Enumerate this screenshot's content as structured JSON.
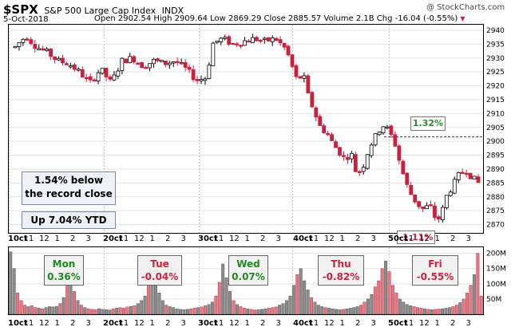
{
  "header": {
    "symbol": "$SPX",
    "name": "S&P 500 Large Cap Index",
    "exchange": "INDX",
    "date": "5-Oct-2018",
    "ohlc_text": "Open 2902.54  High 2909.64  Low 2869.29  Close 2885.57  Volume 2.1B  Chg -16.04 (-0.55%)",
    "down_marker": "▼",
    "credit": "@ StockCharts.com"
  },
  "annotations": {
    "record_line1": "1.54% below",
    "record_line2": "the record close",
    "ytd": "Up 7.04% YTD",
    "gain_tag": "1.32%",
    "loss_tag": "-1.11%"
  },
  "days": [
    {
      "day": "Mon",
      "change": "0.36%",
      "color": "#1e8a1e"
    },
    {
      "day": "Tue",
      "change": "-0.04%",
      "color": "#d0213a"
    },
    {
      "day": "Wed",
      "change": "0.07%",
      "color": "#1e8a1e"
    },
    {
      "day": "Thu",
      "change": "-0.82%",
      "color": "#d0213a"
    },
    {
      "day": "Fri",
      "change": "-0.55%",
      "color": "#d0213a"
    }
  ],
  "chart_data": {
    "type": "candlestick",
    "price_axis": {
      "ticks": [
        "2940",
        "2935",
        "2930",
        "2925",
        "2920",
        "2915",
        "2910",
        "2905",
        "2900",
        "2895",
        "2890",
        "2885",
        "2880",
        "2875",
        "2870"
      ],
      "ylim": [
        2867,
        2942
      ]
    },
    "volume_axis": {
      "ticks": [
        "200M",
        "150M",
        "100M",
        "50M"
      ],
      "ylim": [
        0,
        220
      ]
    },
    "x_ticks": [
      "10ct",
      "11",
      "12",
      "1",
      "2",
      "3",
      "20ct",
      "11",
      "12",
      "1",
      "2",
      "3",
      "30ct",
      "11",
      "12",
      "1",
      "2",
      "3",
      "40ct",
      "11",
      "12",
      "1",
      "2",
      "3",
      "50ct",
      "11",
      "12",
      "1",
      "2",
      "3"
    ],
    "reference_level": 2901.6,
    "price_path": [
      [
        0,
        2934
      ],
      [
        5,
        2938
      ],
      [
        10,
        2934
      ],
      [
        15,
        2932
      ],
      [
        20,
        2929
      ],
      [
        25,
        2928
      ],
      [
        30,
        2925
      ],
      [
        35,
        2921
      ],
      [
        40,
        2926
      ],
      [
        45,
        2921
      ],
      [
        50,
        2929
      ],
      [
        55,
        2930
      ],
      [
        60,
        2927
      ],
      [
        65,
        2929
      ],
      [
        70,
        2928
      ],
      [
        75,
        2929
      ],
      [
        80,
        2926
      ],
      [
        85,
        2922
      ],
      [
        90,
        2923
      ],
      [
        92,
        2935
      ],
      [
        97,
        2937
      ],
      [
        102,
        2935
      ],
      [
        107,
        2936
      ],
      [
        112,
        2937
      ],
      [
        117,
        2936
      ],
      [
        122,
        2937
      ],
      [
        127,
        2933
      ],
      [
        132,
        2922
      ],
      [
        135,
        2924
      ],
      [
        137,
        2917
      ],
      [
        140,
        2911
      ],
      [
        143,
        2905
      ],
      [
        146,
        2903
      ],
      [
        149,
        2899
      ],
      [
        152,
        2896
      ],
      [
        155,
        2893
      ],
      [
        157,
        2897
      ],
      [
        160,
        2888
      ],
      [
        163,
        2891
      ],
      [
        166,
        2898
      ],
      [
        169,
        2902
      ],
      [
        172,
        2906
      ],
      [
        175,
        2904
      ],
      [
        178,
        2899
      ],
      [
        180,
        2893
      ],
      [
        183,
        2885
      ],
      [
        186,
        2880
      ],
      [
        189,
        2877
      ],
      [
        192,
        2875
      ],
      [
        194,
        2878
      ],
      [
        196,
        2873
      ],
      [
        199,
        2872
      ],
      [
        202,
        2880
      ],
      [
        205,
        2884
      ],
      [
        208,
        2888
      ],
      [
        211,
        2890
      ],
      [
        214,
        2887
      ],
      [
        217,
        2885
      ]
    ],
    "volume": [
      205,
      150,
      70,
      45,
      30,
      25,
      28,
      22,
      20,
      18,
      22,
      25,
      24,
      26,
      35,
      55,
      100,
      130,
      75,
      45,
      30,
      22,
      18,
      16,
      15,
      18,
      16,
      15,
      14,
      18,
      20,
      22,
      20,
      24,
      26,
      28,
      35,
      45,
      60,
      95,
      175,
      130,
      70,
      45,
      30,
      25,
      22,
      18,
      16,
      15,
      16,
      18,
      20,
      22,
      24,
      28,
      32,
      40,
      60,
      105,
      165,
      120,
      75,
      45,
      32,
      25,
      20,
      18,
      16,
      14,
      15,
      16,
      18,
      20,
      22,
      24,
      30,
      35,
      45,
      60,
      95,
      130,
      150,
      110,
      80,
      55,
      40,
      30,
      25,
      22,
      20,
      18,
      16,
      15,
      16,
      18,
      20,
      22,
      25,
      30,
      40,
      50,
      65,
      90,
      110,
      150,
      175,
      140,
      95,
      70,
      50,
      40,
      32,
      28,
      25,
      22,
      20,
      18,
      16,
      15,
      16,
      17,
      18,
      20,
      22,
      25,
      30,
      38,
      50,
      70,
      95,
      130,
      200,
      60
    ]
  }
}
